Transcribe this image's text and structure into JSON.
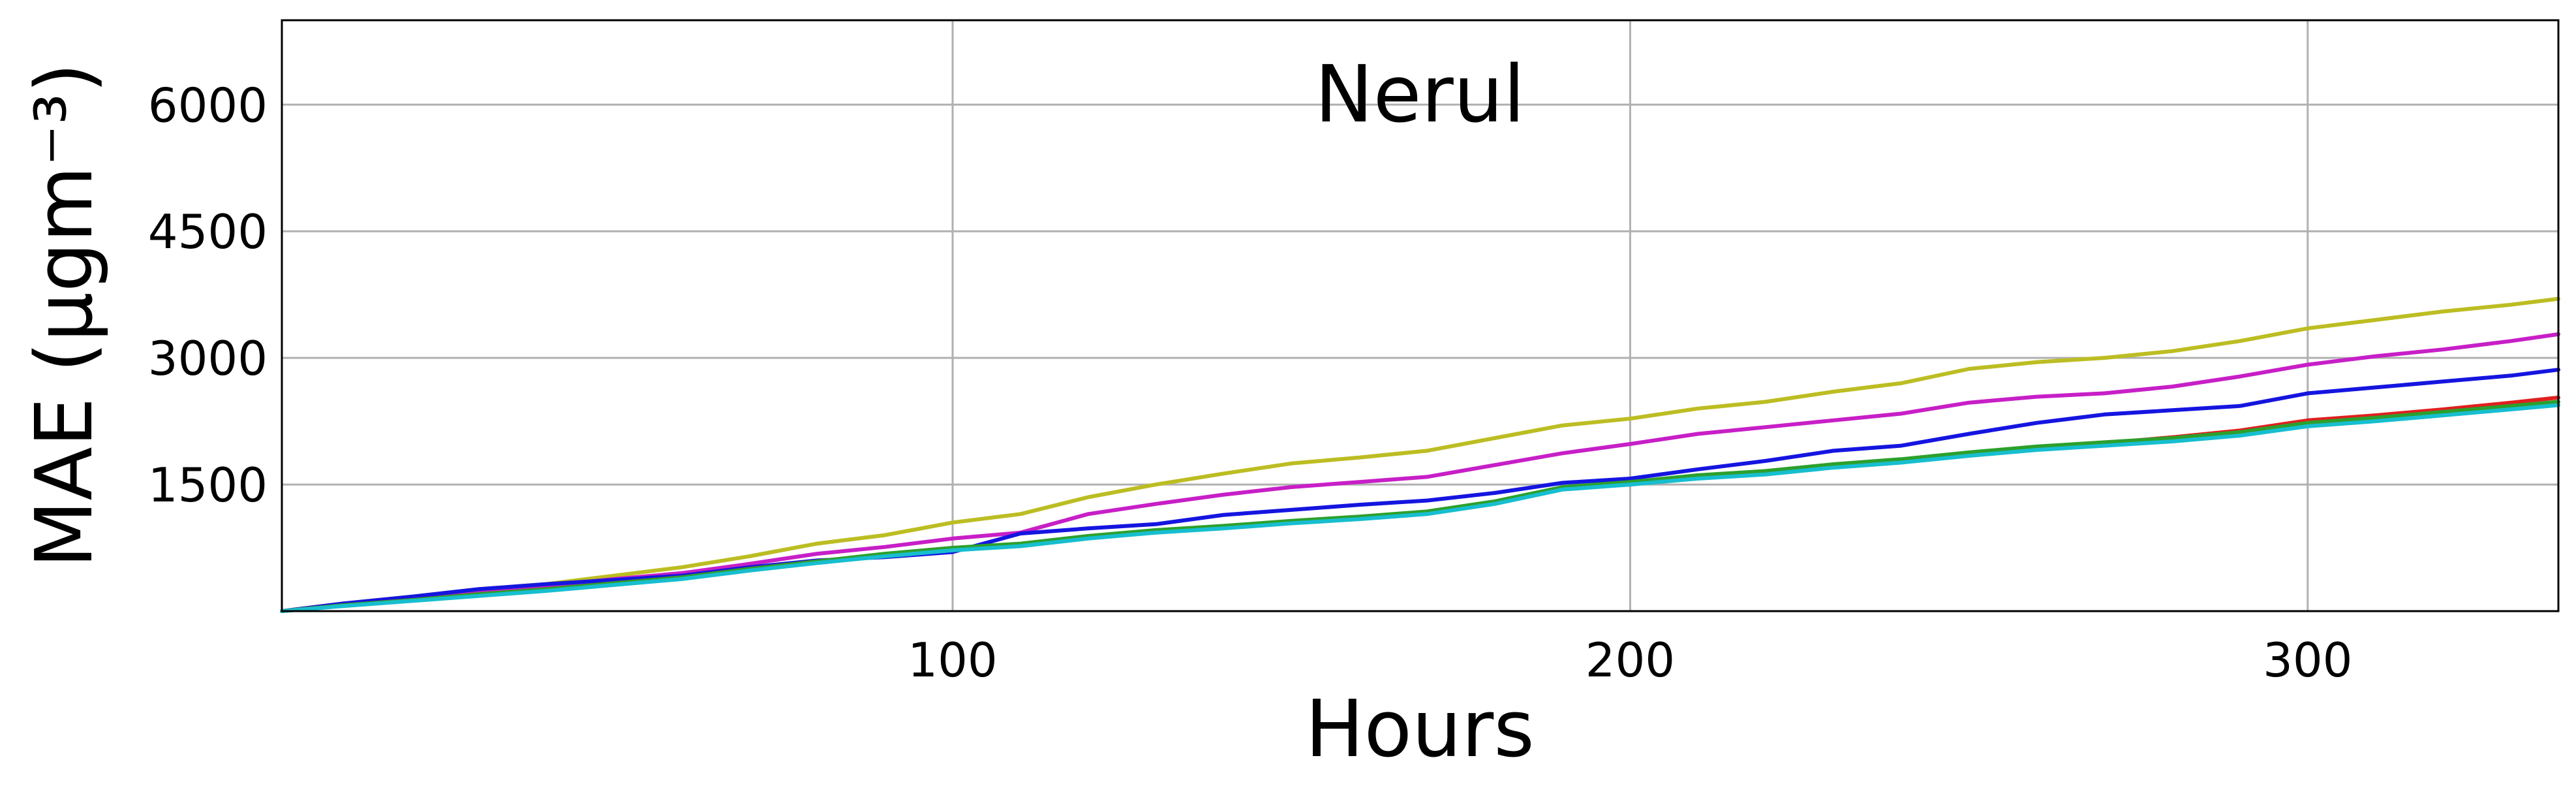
{
  "chart_data": {
    "type": "line",
    "title": "Nerul",
    "xlabel": "Hours",
    "ylabel": "MAE (μgm⁻³)",
    "xlim": [
      1,
      337
    ],
    "ylim": [
      0,
      7000
    ],
    "xticks": [
      100,
      200,
      300
    ],
    "yticks": [
      1500,
      3000,
      4500,
      6000
    ],
    "grid": true,
    "legend": "none",
    "series": [
      {
        "color": "#bcbd22",
        "x": [
          1,
          10,
          20,
          30,
          40,
          50,
          60,
          70,
          80,
          90,
          100,
          110,
          120,
          130,
          140,
          150,
          160,
          170,
          180,
          190,
          200,
          210,
          220,
          230,
          240,
          250,
          260,
          270,
          280,
          290,
          300,
          310,
          320,
          330,
          337
        ],
        "y": [
          0,
          90,
          170,
          260,
          320,
          420,
          520,
          650,
          800,
          900,
          1050,
          1150,
          1350,
          1500,
          1630,
          1750,
          1820,
          1900,
          2050,
          2200,
          2280,
          2400,
          2480,
          2600,
          2700,
          2870,
          2950,
          3000,
          3080,
          3200,
          3350,
          3450,
          3550,
          3630,
          3700
        ]
      },
      {
        "color": "#c71fc7",
        "x": [
          1,
          10,
          20,
          30,
          40,
          50,
          60,
          70,
          80,
          90,
          100,
          110,
          120,
          130,
          140,
          150,
          160,
          170,
          180,
          190,
          200,
          210,
          220,
          230,
          240,
          250,
          260,
          270,
          280,
          290,
          300,
          310,
          320,
          330,
          337
        ],
        "y": [
          0,
          80,
          150,
          230,
          300,
          380,
          450,
          560,
          680,
          760,
          860,
          930,
          1150,
          1270,
          1380,
          1470,
          1530,
          1590,
          1730,
          1870,
          1980,
          2100,
          2180,
          2260,
          2340,
          2470,
          2540,
          2580,
          2660,
          2780,
          2920,
          3020,
          3100,
          3200,
          3280
        ]
      },
      {
        "color": "#1515e0",
        "x": [
          1,
          10,
          20,
          30,
          40,
          50,
          60,
          70,
          80,
          90,
          100,
          110,
          120,
          130,
          140,
          150,
          160,
          170,
          180,
          190,
          200,
          210,
          220,
          230,
          240,
          250,
          260,
          270,
          280,
          290,
          300,
          310,
          320,
          330,
          337
        ],
        "y": [
          0,
          90,
          170,
          260,
          320,
          370,
          420,
          520,
          600,
          640,
          700,
          920,
          980,
          1030,
          1140,
          1200,
          1260,
          1310,
          1400,
          1520,
          1570,
          1680,
          1780,
          1900,
          1960,
          2100,
          2230,
          2330,
          2380,
          2430,
          2580,
          2650,
          2720,
          2790,
          2860
        ]
      },
      {
        "color": "#e01f1f",
        "x": [
          1,
          10,
          20,
          30,
          40,
          50,
          60,
          70,
          80,
          90,
          100,
          110,
          120,
          130,
          140,
          150,
          160,
          170,
          180,
          190,
          200,
          210,
          220,
          230,
          240,
          250,
          260,
          270,
          280,
          290,
          300,
          310,
          320,
          330,
          337
        ],
        "y": [
          0,
          70,
          130,
          200,
          260,
          330,
          400,
          500,
          590,
          670,
          740,
          790,
          880,
          950,
          1000,
          1060,
          1110,
          1170,
          1290,
          1450,
          1500,
          1580,
          1630,
          1720,
          1780,
          1860,
          1930,
          1990,
          2060,
          2140,
          2260,
          2320,
          2390,
          2470,
          2530
        ]
      },
      {
        "color": "#2ca02c",
        "x": [
          1,
          10,
          20,
          30,
          40,
          50,
          60,
          70,
          80,
          90,
          100,
          110,
          120,
          130,
          140,
          150,
          160,
          170,
          180,
          190,
          200,
          210,
          220,
          230,
          240,
          250,
          260,
          270,
          280,
          290,
          300,
          310,
          320,
          330,
          337
        ],
        "y": [
          0,
          70,
          130,
          200,
          260,
          330,
          400,
          500,
          590,
          680,
          750,
          800,
          890,
          960,
          1010,
          1070,
          1120,
          1180,
          1300,
          1470,
          1530,
          1610,
          1660,
          1740,
          1800,
          1880,
          1950,
          2000,
          2050,
          2120,
          2230,
          2290,
          2360,
          2430,
          2480
        ]
      },
      {
        "color": "#17becf",
        "x": [
          1,
          10,
          20,
          30,
          40,
          50,
          60,
          70,
          80,
          90,
          100,
          110,
          120,
          130,
          140,
          150,
          160,
          170,
          180,
          190,
          200,
          210,
          220,
          230,
          240,
          250,
          260,
          270,
          280,
          290,
          300,
          310,
          320,
          330,
          337
        ],
        "y": [
          0,
          60,
          120,
          180,
          240,
          310,
          380,
          480,
          570,
          650,
          720,
          770,
          860,
          930,
          980,
          1040,
          1090,
          1150,
          1270,
          1440,
          1500,
          1570,
          1620,
          1700,
          1760,
          1840,
          1910,
          1960,
          2010,
          2080,
          2190,
          2250,
          2320,
          2390,
          2440
        ]
      }
    ]
  }
}
